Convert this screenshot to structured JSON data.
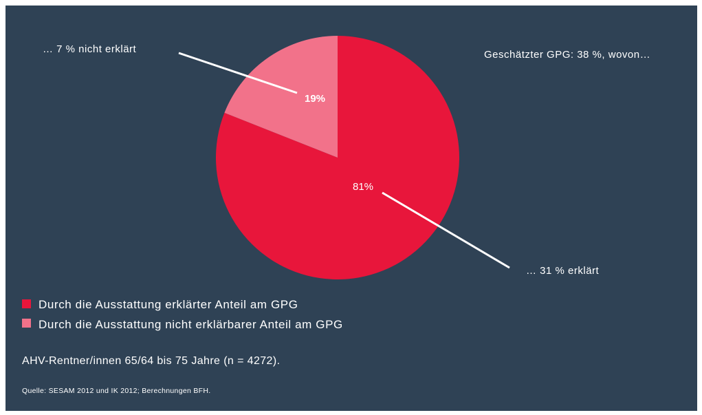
{
  "chart_data": {
    "type": "pie",
    "title": "Geschätzter GPG: 38 %, wovon…",
    "slices": [
      {
        "label": "Durch die Ausstattung erklärter Anteil am GPG",
        "value": 81,
        "value_label": "81%",
        "color": "#e8163b"
      },
      {
        "label": "Durch die Ausstattung nicht erklärbarer Anteil am GPG",
        "value": 19,
        "value_label": "19%",
        "color": "#f2728a"
      }
    ],
    "annotations": [
      {
        "text": "… 31 % erklärt",
        "slice": 0
      },
      {
        "text": "… 7 % nicht erklärt",
        "slice": 1
      }
    ],
    "legend_position": "bottom-left"
  },
  "note": "AHV-Rentner/innen 65/64 bis 75 Jahre (n = 4272).",
  "source": "Quelle: SESAM 2012 und IK 2012; Berechnungen BFH.",
  "colors": {
    "background": "#2f4255",
    "text": "#ffffff",
    "leader_line": "#ffffff"
  }
}
